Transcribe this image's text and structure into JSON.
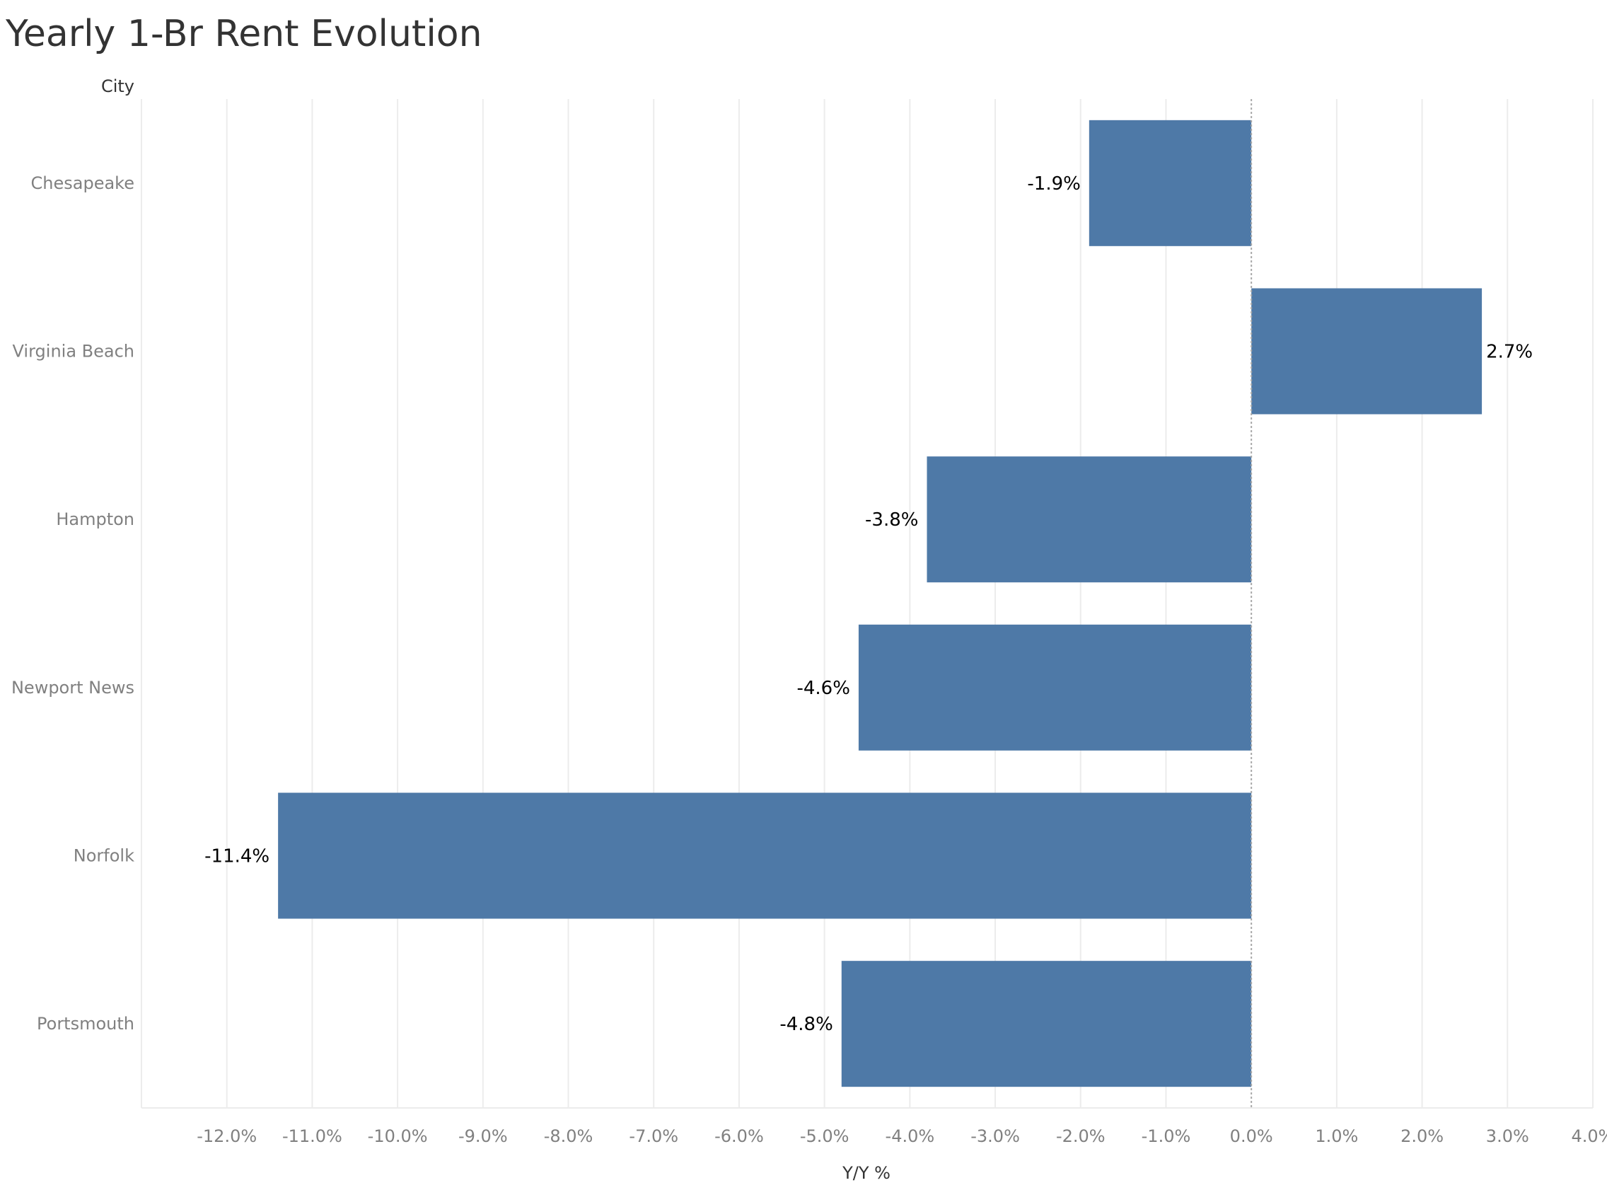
{
  "title": "Yearly 1-Br Rent Evolution",
  "colors": {
    "bar": "#4e79a7",
    "grid": "#ececec",
    "zero_line": "#a8a8a8",
    "text_muted": "#808080",
    "text_dark": "#333333"
  },
  "chart_data": {
    "type": "bar",
    "orientation": "horizontal",
    "row_header": "City",
    "categories": [
      "Chesapeake",
      "Virginia Beach",
      "Hampton",
      "Newport News",
      "Norfolk",
      "Portsmouth"
    ],
    "values": [
      -1.9,
      2.7,
      -3.8,
      -4.6,
      -11.4,
      -4.8
    ],
    "value_labels": [
      "-1.9%",
      "2.7%",
      "-3.8%",
      "-4.6%",
      "-11.4%",
      "-4.8%"
    ],
    "xlabel": "Y/Y %",
    "xlim": [
      -13.0,
      4.0
    ],
    "xticks": [
      -12,
      -11,
      -10,
      -9,
      -8,
      -7,
      -6,
      -5,
      -4,
      -3,
      -2,
      -1,
      0,
      1,
      2,
      3,
      4
    ],
    "xtick_labels": [
      "-12.0%",
      "-11.0%",
      "-10.0%",
      "-9.0%",
      "-8.0%",
      "-7.0%",
      "-6.0%",
      "-5.0%",
      "-4.0%",
      "-3.0%",
      "-2.0%",
      "-1.0%",
      "0.0%",
      "1.0%",
      "2.0%",
      "3.0%",
      "4.0%"
    ],
    "grid": true,
    "legend": "none"
  }
}
